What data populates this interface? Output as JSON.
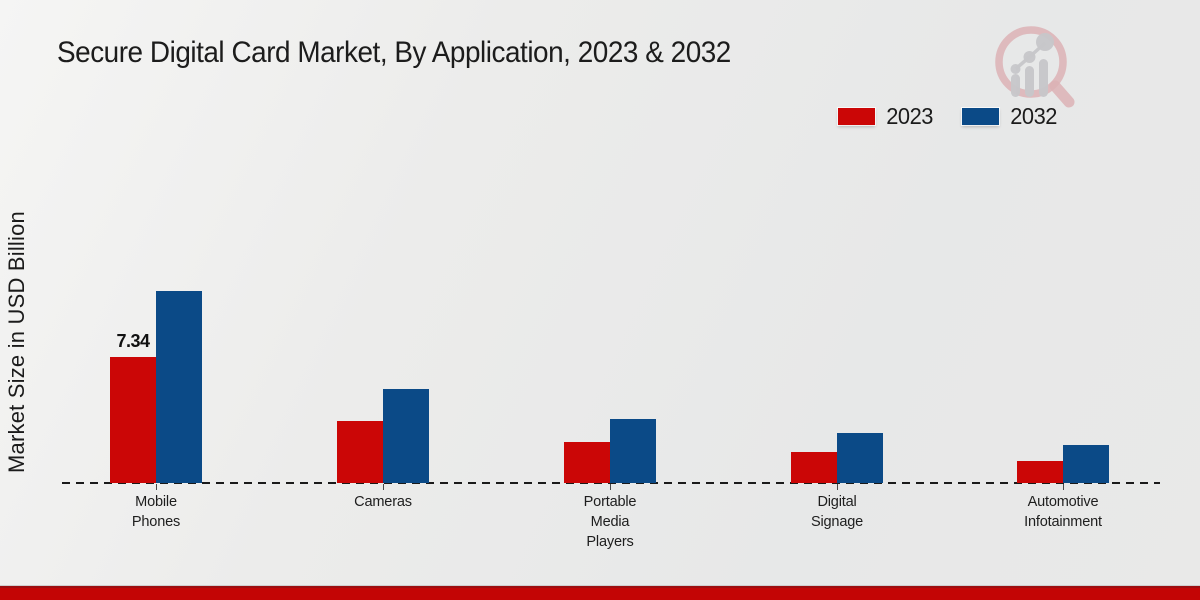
{
  "title": "Secure Digital Card Market, By Application, 2023 & 2032",
  "y_axis_label": "Market Size in USD Billion",
  "legend": {
    "items": [
      {
        "label": "2023",
        "color": "#cb0606"
      },
      {
        "label": "2032",
        "color": "#0b4a87"
      }
    ]
  },
  "chart_data": {
    "type": "bar",
    "title": "Secure Digital Card Market, By Application, 2023 & 2032",
    "xlabel": "",
    "ylabel": "Market Size in USD Billion",
    "categories": [
      "Mobile Phones",
      "Cameras",
      "Portable Media Players",
      "Digital Signage",
      "Automotive Infotainment"
    ],
    "category_label_lines": [
      [
        "Mobile",
        "Phones"
      ],
      [
        "Cameras"
      ],
      [
        "Portable",
        "Media",
        "Players"
      ],
      [
        "Digital",
        "Signage"
      ],
      [
        "Automotive",
        "Infotainment"
      ]
    ],
    "series": [
      {
        "name": "2023",
        "color": "#cb0606",
        "values": [
          7.34,
          3.6,
          2.4,
          1.8,
          1.3
        ]
      },
      {
        "name": "2032",
        "color": "#0b4a87",
        "values": [
          11.2,
          5.5,
          3.7,
          2.9,
          2.2
        ]
      }
    ],
    "value_labels": [
      {
        "series_index": 0,
        "category_index": 0,
        "text": "7.34"
      }
    ],
    "ylim": [
      0,
      11.5
    ],
    "grid": false,
    "legend_position": "top-right",
    "baseline_style": "dashed"
  },
  "branding": {
    "logo_name": "magnifier-growth-chart-logo",
    "footer_bar_color": "#c30505"
  }
}
